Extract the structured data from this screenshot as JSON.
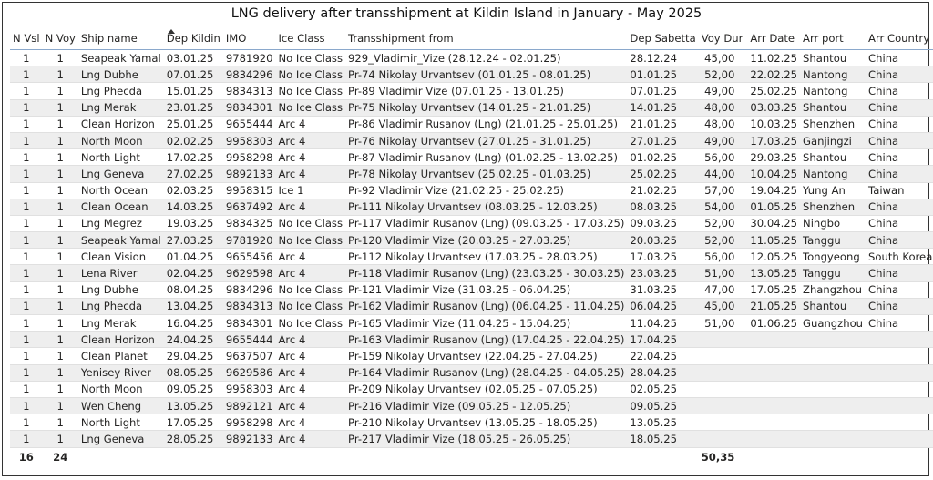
{
  "title": "LNG delivery after transshipment at Kildin Island in January - May 2025",
  "table": {
    "columns": [
      "N Vsl",
      "N Voy",
      "Ship name",
      "Dep Kildin",
      "IMO",
      "Ice Class",
      "Transshipment from",
      "Dep Sabetta",
      "Voy Dur",
      "Arr Date",
      "Arr port",
      "Arr Country"
    ],
    "rows": [
      [
        "1",
        "1",
        "Seapeak Yamal",
        "03.01.25",
        "9781920",
        "No Ice Class",
        "929_Vladimir_Vize (28.12.24 - 02.01.25)",
        "28.12.24",
        "45,00",
        "11.02.25",
        "Shantou",
        "China"
      ],
      [
        "1",
        "1",
        "Lng Dubhe",
        "07.01.25",
        "9834296",
        "No Ice Class",
        "Pr-74 Nikolay Urvantsev (01.01.25 - 08.01.25)",
        "01.01.25",
        "52,00",
        "22.02.25",
        "Nantong",
        "China"
      ],
      [
        "1",
        "1",
        "Lng Phecda",
        "15.01.25",
        "9834313",
        "No Ice Class",
        "Pr-89 Vladimir Vize (07.01.25 - 13.01.25)",
        "07.01.25",
        "49,00",
        "25.02.25",
        "Nantong",
        "China"
      ],
      [
        "1",
        "1",
        "Lng Merak",
        "23.01.25",
        "9834301",
        "No Ice Class",
        "Pr-75 Nikolay Urvantsev (14.01.25 - 21.01.25)",
        "14.01.25",
        "48,00",
        "03.03.25",
        "Shantou",
        "China"
      ],
      [
        "1",
        "1",
        "Clean Horizon",
        "25.01.25",
        "9655444",
        "Arc 4",
        "Pr-86 Vladimir Rusanov (Lng) (21.01.25 - 25.01.25)",
        "21.01.25",
        "48,00",
        "10.03.25",
        "Shenzhen",
        "China"
      ],
      [
        "1",
        "1",
        "North Moon",
        "02.02.25",
        "9958303",
        "Arc 4",
        "Pr-76 Nikolay Urvantsev (27.01.25 - 31.01.25)",
        "27.01.25",
        "49,00",
        "17.03.25",
        "Ganjingzi",
        "China"
      ],
      [
        "1",
        "1",
        "North Light",
        "17.02.25",
        "9958298",
        "Arc 4",
        "Pr-87 Vladimir Rusanov (Lng) (01.02.25 - 13.02.25)",
        "01.02.25",
        "56,00",
        "29.03.25",
        "Shantou",
        "China"
      ],
      [
        "1",
        "1",
        "Lng Geneva",
        "27.02.25",
        "9892133",
        "Arc 4",
        "Pr-78 Nikolay Urvantsev (25.02.25 - 01.03.25)",
        "25.02.25",
        "44,00",
        "10.04.25",
        "Nantong",
        "China"
      ],
      [
        "1",
        "1",
        "North Ocean",
        "02.03.25",
        "9958315",
        "Ice 1",
        "Pr-92 Vladimir Vize (21.02.25 - 25.02.25)",
        "21.02.25",
        "57,00",
        "19.04.25",
        "Yung An",
        "Taiwan"
      ],
      [
        "1",
        "1",
        "Clean Ocean",
        "14.03.25",
        "9637492",
        "Arc 4",
        "Pr-111 Nikolay Urvantsev (08.03.25 - 12.03.25)",
        "08.03.25",
        "54,00",
        "01.05.25",
        "Shenzhen",
        "China"
      ],
      [
        "1",
        "1",
        "Lng Megrez",
        "19.03.25",
        "9834325",
        "No Ice Class",
        "Pr-117 Vladimir Rusanov (Lng) (09.03.25 - 17.03.25)",
        "09.03.25",
        "52,00",
        "30.04.25",
        "Ningbo",
        "China"
      ],
      [
        "1",
        "1",
        "Seapeak Yamal",
        "27.03.25",
        "9781920",
        "No Ice Class",
        "Pr-120 Vladimir Vize (20.03.25 - 27.03.25)",
        "20.03.25",
        "52,00",
        "11.05.25",
        "Tanggu",
        "China"
      ],
      [
        "1",
        "1",
        "Clean Vision",
        "01.04.25",
        "9655456",
        "Arc 4",
        "Pr-112 Nikolay Urvantsev (17.03.25 - 28.03.25)",
        "17.03.25",
        "56,00",
        "12.05.25",
        "Tongyeong",
        "South Korea"
      ],
      [
        "1",
        "1",
        "Lena River",
        "02.04.25",
        "9629598",
        "Arc 4",
        "Pr-118 Vladimir Rusanov (Lng) (23.03.25 - 30.03.25)",
        "23.03.25",
        "51,00",
        "13.05.25",
        "Tanggu",
        "China"
      ],
      [
        "1",
        "1",
        "Lng Dubhe",
        "08.04.25",
        "9834296",
        "No Ice Class",
        "Pr-121 Vladimir Vize (31.03.25 - 06.04.25)",
        "31.03.25",
        "47,00",
        "17.05.25",
        "Zhangzhou",
        "China"
      ],
      [
        "1",
        "1",
        "Lng Phecda",
        "13.04.25",
        "9834313",
        "No Ice Class",
        "Pr-162 Vladimir Rusanov (Lng) (06.04.25 - 11.04.25)",
        "06.04.25",
        "45,00",
        "21.05.25",
        "Shantou",
        "China"
      ],
      [
        "1",
        "1",
        "Lng Merak",
        "16.04.25",
        "9834301",
        "No Ice Class",
        "Pr-165 Vladimir Vize (11.04.25 - 15.04.25)",
        "11.04.25",
        "51,00",
        "01.06.25",
        "Guangzhou",
        "China"
      ],
      [
        "1",
        "1",
        "Clean Horizon",
        "24.04.25",
        "9655444",
        "Arc 4",
        "Pr-163 Vladimir Rusanov (Lng) (17.04.25 - 22.04.25)",
        "17.04.25",
        null,
        null,
        null,
        null
      ],
      [
        "1",
        "1",
        "Clean Planet",
        "29.04.25",
        "9637507",
        "Arc 4",
        "Pr-159 Nikolay Urvantsev (22.04.25 - 27.04.25)",
        "22.04.25",
        null,
        null,
        null,
        null
      ],
      [
        "1",
        "1",
        "Yenisey River",
        "08.05.25",
        "9629586",
        "Arc 4",
        "Pr-164 Vladimir Rusanov (Lng) (28.04.25 - 04.05.25)",
        "28.04.25",
        null,
        null,
        null,
        null
      ],
      [
        "1",
        "1",
        "North Moon",
        "09.05.25",
        "9958303",
        "Arc 4",
        "Pr-209 Nikolay Urvantsev (02.05.25 - 07.05.25)",
        "02.05.25",
        null,
        null,
        null,
        null
      ],
      [
        "1",
        "1",
        "Wen Cheng",
        "13.05.25",
        "9892121",
        "Arc 4",
        "Pr-216 Vladimir Vize (09.05.25 - 12.05.25)",
        "09.05.25",
        null,
        null,
        null,
        null
      ],
      [
        "1",
        "1",
        "North Light",
        "17.05.25",
        "9958298",
        "Arc 4",
        "Pr-210 Nikolay Urvantsev (13.05.25 - 18.05.25)",
        "13.05.25",
        null,
        null,
        null,
        null
      ],
      [
        "1",
        "1",
        "Lng Geneva",
        "28.05.25",
        "9892133",
        "Arc 4",
        "Pr-217 Vladimir Vize (18.05.25 - 26.05.25)",
        "18.05.25",
        null,
        null,
        null,
        null
      ]
    ],
    "totals": [
      "16",
      "24",
      null,
      null,
      null,
      null,
      null,
      null,
      "50,35",
      null,
      null,
      null
    ]
  }
}
